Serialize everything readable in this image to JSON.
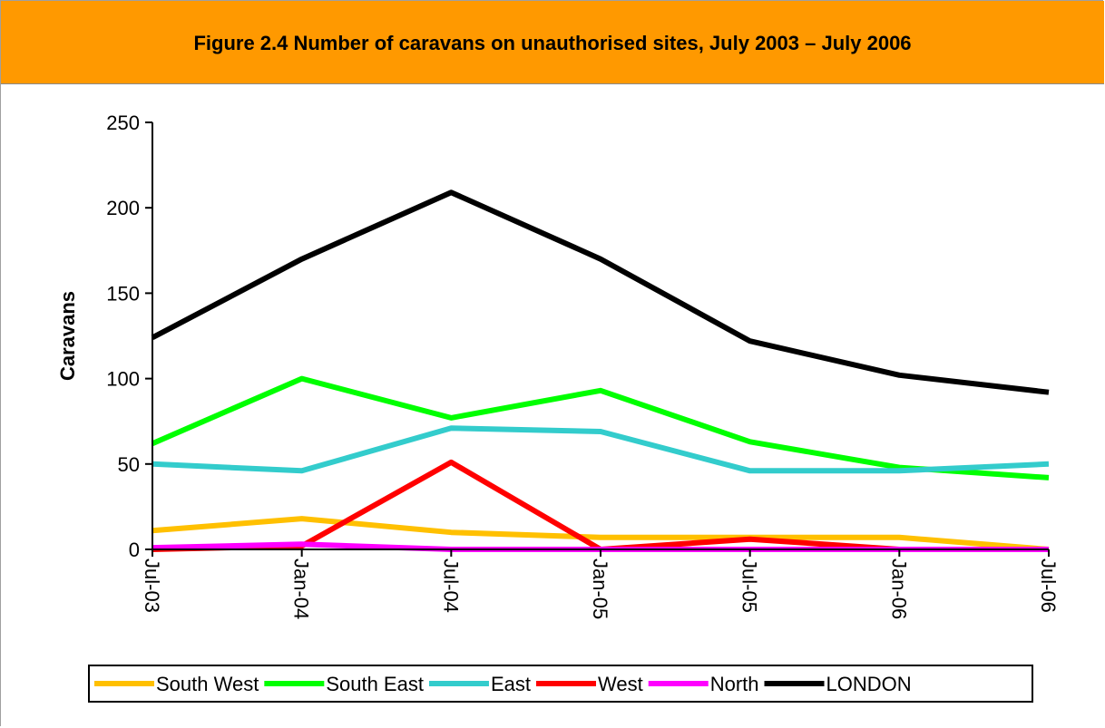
{
  "header": {
    "title": "Figure 2.4 Number of caravans on unauthorised sites, July 2003 – July 2006"
  },
  "chart_data": {
    "type": "line",
    "title": "Figure 2.4 Number of caravans on unauthorised sites, July 2003 – July 2006",
    "xlabel": "",
    "ylabel": "Caravans",
    "ylim": [
      0,
      250
    ],
    "yticks": [
      0,
      50,
      100,
      150,
      200,
      250
    ],
    "categories": [
      "Jul-03",
      "Jan-04",
      "Jul-04",
      "Jan-05",
      "Jul-05",
      "Jan-06",
      "Jul-06"
    ],
    "grid": false,
    "legend_position": "bottom",
    "series": [
      {
        "name": "South West",
        "color": "#ffc000",
        "values": [
          11,
          18,
          10,
          7,
          7,
          7,
          0
        ]
      },
      {
        "name": "South East",
        "color": "#00ff00",
        "values": [
          62,
          100,
          77,
          93,
          63,
          48,
          42
        ]
      },
      {
        "name": "East",
        "color": "#33cccc",
        "values": [
          50,
          46,
          71,
          69,
          46,
          46,
          50
        ]
      },
      {
        "name": "West",
        "color": "#ff0000",
        "values": [
          0,
          2,
          51,
          0,
          6,
          0,
          0
        ]
      },
      {
        "name": "North",
        "color": "#ff00ff",
        "values": [
          1,
          3,
          0,
          0,
          0,
          0,
          0
        ]
      },
      {
        "name": "LONDON",
        "color": "#000000",
        "values": [
          124,
          170,
          209,
          170,
          122,
          102,
          92
        ]
      }
    ]
  }
}
